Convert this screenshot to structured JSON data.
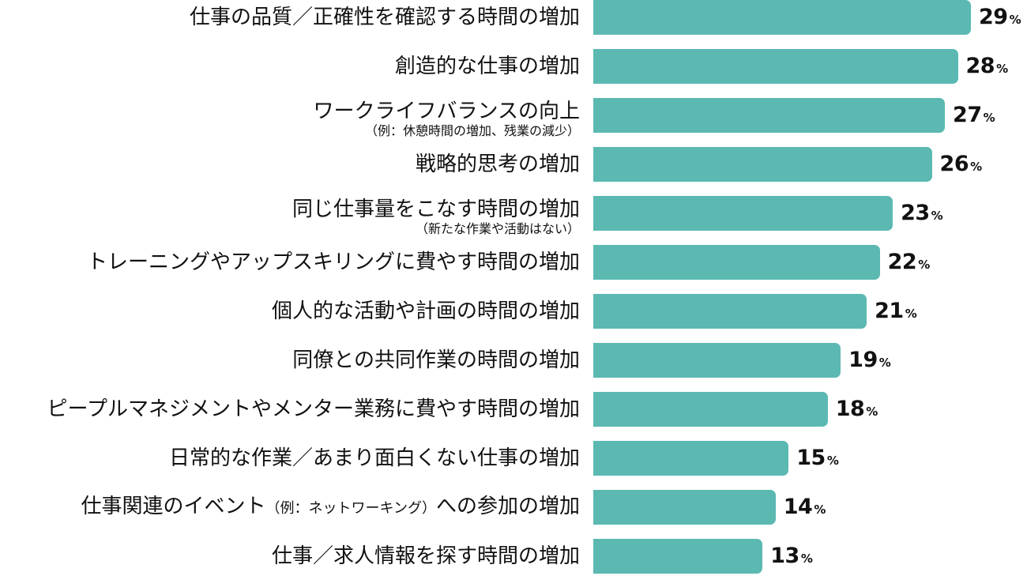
{
  "chart_data": {
    "type": "bar",
    "orientation": "horizontal",
    "bar_color": "#5bb9b2",
    "unit": "%",
    "bars": [
      {
        "label": "仕事の品質／正確性を確認する時間の増加",
        "note": "",
        "value": 29
      },
      {
        "label": "創造的な仕事の増加",
        "note": "",
        "value": 28
      },
      {
        "label": "ワークライフバランスの向上",
        "note": "（例：休憩時間の増加、残業の減少）",
        "value": 27
      },
      {
        "label": "戦略的思考の増加",
        "note": "",
        "value": 26
      },
      {
        "label": "同じ仕事量をこなす時間の増加",
        "note": "（新たな作業や活動はない）",
        "value": 23
      },
      {
        "label": "トレーニングやアップスキリングに費やす時間の増加",
        "note": "",
        "value": 22
      },
      {
        "label": "個人的な活動や計画の時間の増加",
        "note": "",
        "value": 21
      },
      {
        "label": "同僚との共同作業の時間の増加",
        "note": "",
        "value": 19
      },
      {
        "label": "ピープルマネジメントやメンター業務に費やす時間の増加",
        "note": "",
        "value": 18
      },
      {
        "label": "日常的な作業／あまり面白くない仕事の増加",
        "note": "",
        "value": 15
      },
      {
        "label": "仕事関連のイベント",
        "inline_note": "（例：ネットワーキング）",
        "label_suffix": "への参加の増加",
        "note": "",
        "value": 14
      },
      {
        "label": "仕事／求人情報を探す時間の増加",
        "note": "",
        "value": 13
      }
    ]
  }
}
